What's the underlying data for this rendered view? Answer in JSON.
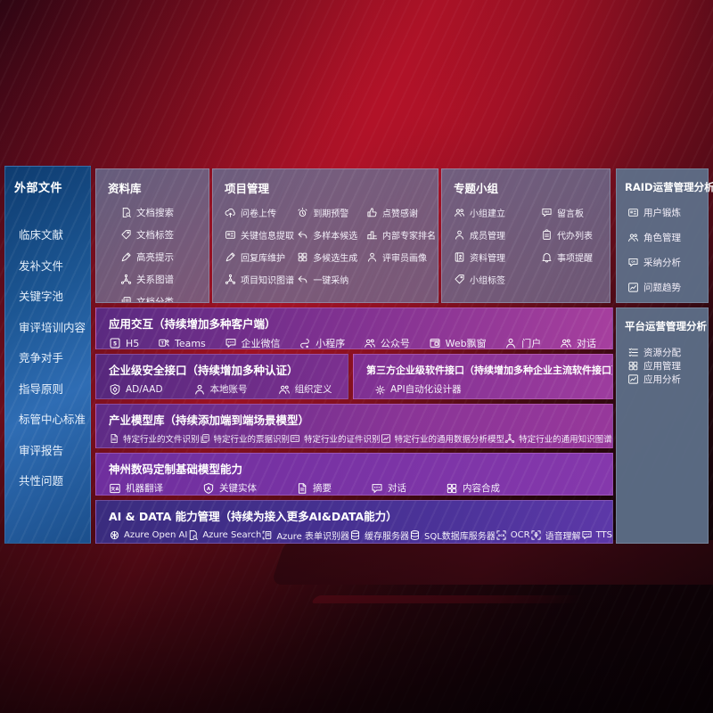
{
  "colors": {
    "background_red": "#9c1224",
    "sidebar_blue": "#1c5693",
    "module_slate": "#66718f",
    "ops_slate": "#5e7089",
    "row_purple": "#7e3190",
    "row_magenta": "#a63f9e",
    "row_indigo": "#4c339a",
    "text": "#ffffff"
  },
  "sidebar": {
    "title": "外部文件",
    "items": [
      "临床文献",
      "发补文件",
      "关键字池",
      "审评培训内容",
      "竞争对手",
      "指导原则",
      "标管中心标准",
      "审评报告",
      "共性问题"
    ]
  },
  "sections": {
    "library": {
      "title": "资料库",
      "items": [
        {
          "icon": "doc-search",
          "label": "文档搜索"
        },
        {
          "icon": "tag",
          "label": "文档标签"
        },
        {
          "icon": "highlight-pen",
          "label": "高亮提示"
        },
        {
          "icon": "knowledge-graph",
          "label": "关系图谱"
        },
        {
          "icon": "doc-stack",
          "label": "文档分类"
        }
      ]
    },
    "project": {
      "title": "项目管理",
      "col1": [
        {
          "icon": "cloud-upload",
          "label": "问卷上传"
        },
        {
          "icon": "info-card",
          "label": "关键信息提取"
        },
        {
          "icon": "highlight-pen",
          "label": "回复库维护"
        },
        {
          "icon": "knowledge-graph",
          "label": "项目知识图谱"
        }
      ],
      "col2": [
        {
          "icon": "alarm",
          "label": "到期预警"
        },
        {
          "icon": "reply-arrow",
          "label": "多样本候选"
        },
        {
          "icon": "puzzle-grid",
          "label": "多候选生成"
        },
        {
          "icon": "reply-arrow",
          "label": "一键采纳"
        }
      ],
      "col3": [
        {
          "icon": "thumbs-up",
          "label": "点赞感谢"
        },
        {
          "icon": "ranking",
          "label": "内部专家排名"
        },
        {
          "icon": "portrait",
          "label": "评审员画像"
        }
      ]
    },
    "group": {
      "title": "专题小组",
      "col1": [
        {
          "icon": "user-group",
          "label": "小组建立"
        },
        {
          "icon": "person-plus",
          "label": "成员管理"
        },
        {
          "icon": "photo-album",
          "label": "资料管理"
        },
        {
          "icon": "tag",
          "label": "小组标签"
        }
      ],
      "col2": [
        {
          "icon": "bbs-board",
          "label": "留言板"
        },
        {
          "icon": "todo-clipboard",
          "label": "代办列表"
        },
        {
          "icon": "bell",
          "label": "事项提醒"
        }
      ]
    },
    "raid": {
      "title": "RAID运营管理分析",
      "items": [
        {
          "icon": "info-card",
          "label": "用户锻炼"
        },
        {
          "icon": "user-group",
          "label": "角色管理"
        },
        {
          "icon": "qa-bubble",
          "label": "采纳分析"
        },
        {
          "icon": "trend-chart",
          "label": "问题趋势"
        }
      ]
    },
    "platform": {
      "title": "平台运营管理分析",
      "items": [
        {
          "icon": "allocation-list",
          "label": "资源分配"
        },
        {
          "icon": "puzzle-grid",
          "label": "应用管理"
        },
        {
          "icon": "trend-chart",
          "label": "应用分析"
        }
      ]
    },
    "interaction": {
      "title": "应用交互（持续增加多种客户端）",
      "items": [
        {
          "icon": "h5",
          "label": "H5"
        },
        {
          "icon": "teams",
          "label": "Teams"
        },
        {
          "icon": "chat-bubble",
          "label": "企业微信"
        },
        {
          "icon": "miniprogram",
          "label": "小程序"
        },
        {
          "icon": "user-group",
          "label": "公众号"
        },
        {
          "icon": "web-popup",
          "label": "Web飘窗"
        },
        {
          "icon": "portrait",
          "label": "门户"
        },
        {
          "icon": "user-group",
          "label": "对话"
        }
      ]
    },
    "security": {
      "title": "企业级安全接口（持续增加多种认证）",
      "items": [
        {
          "icon": "ad-shield",
          "label": "AD/AAD"
        },
        {
          "icon": "portrait",
          "label": "本地账号"
        },
        {
          "icon": "user-group",
          "label": "组织定义"
        }
      ]
    },
    "thirdparty": {
      "title": "第三方企业级软件接口（持续增加多种企业主流软件接口）",
      "items": [
        {
          "icon": "api-gear",
          "label": "API自动化设计器"
        }
      ]
    },
    "industry": {
      "title": "产业模型库（持续添加端到端场景模型）",
      "items": [
        {
          "icon": "doc",
          "label": "特定行业的文件识别"
        },
        {
          "icon": "doc-stack",
          "label": "特定行业的票据识别"
        },
        {
          "icon": "info-card",
          "label": "特定行业的证件识别"
        },
        {
          "icon": "trend-chart",
          "label": "特定行业的通用数据分析模型"
        },
        {
          "icon": "knowledge-graph",
          "label": "特定行业的通用知识图谱模型"
        }
      ]
    },
    "shenzhou": {
      "title": "神州数码定制基础模型能力",
      "items": [
        {
          "icon": "translate",
          "label": "机器翻译"
        },
        {
          "icon": "entity-shield",
          "label": "关键实体"
        },
        {
          "icon": "doc",
          "label": "摘要"
        },
        {
          "icon": "chat-bubble",
          "label": "对话"
        },
        {
          "icon": "puzzle-grid",
          "label": "内容合成"
        }
      ]
    },
    "aidata": {
      "title": "AI & DATA 能力管理（持续为接入更多AI&DATA能力）",
      "items": [
        {
          "icon": "openai-swirl",
          "label": "Azure Open AI"
        },
        {
          "icon": "doc-search",
          "label": "Azure Search"
        },
        {
          "icon": "form-doc",
          "label": "Azure 表单识别器"
        },
        {
          "icon": "database",
          "label": "缓存服务器"
        },
        {
          "icon": "database",
          "label": "SQL数据库服务器"
        },
        {
          "icon": "ocr-frame",
          "label": "OCR"
        },
        {
          "icon": "speech-frame",
          "label": "语音理解"
        },
        {
          "icon": "chat-bubble",
          "label": "TTS"
        }
      ]
    }
  }
}
